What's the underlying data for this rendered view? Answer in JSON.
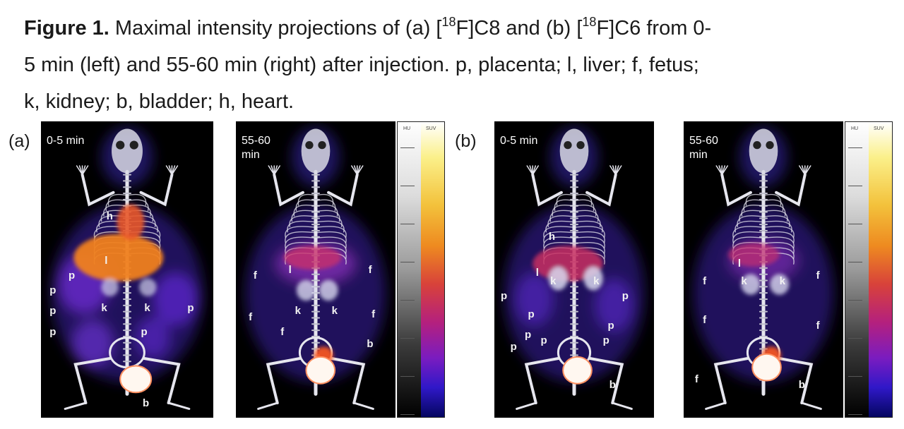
{
  "caption": {
    "bold": "Figure 1.",
    "line1_a": " Maximal intensity projections of (a) [",
    "sup1": "18",
    "line1_b": "F]C8 and (b) [",
    "sup2": "18",
    "line1_c": "F]C6 from 0-",
    "line2": "5 min (left) and 55-60 min (right) after injection. p, placenta; l, liver; f, fetus;",
    "line3": "k, kidney; b, bladder; h, heart."
  },
  "panels": [
    {
      "label": "(a)",
      "images": [
        {
          "time": "0-5 min",
          "organs": [
            "h",
            "l",
            "p",
            "p",
            "p",
            "p",
            "k",
            "k",
            "p",
            "p",
            "b"
          ]
        },
        {
          "time": "55-60\nmin",
          "organs": [
            "f",
            "l",
            "f",
            "k",
            "k",
            "f",
            "f",
            "f",
            "b"
          ]
        }
      ],
      "scale_headers": [
        "HU",
        "SUV"
      ]
    },
    {
      "label": "(b)",
      "images": [
        {
          "time": "0-5 min",
          "organs": [
            "h",
            "l",
            "k",
            "k",
            "p",
            "p",
            "p",
            "p",
            "p",
            "p",
            "p",
            "p",
            "b"
          ]
        },
        {
          "time": "55-60\nmin",
          "organs": [
            "l",
            "f",
            "f",
            "k",
            "k",
            "f",
            "f",
            "f",
            "b"
          ]
        }
      ],
      "scale_headers": [
        "HU",
        "SUV"
      ]
    }
  ]
}
